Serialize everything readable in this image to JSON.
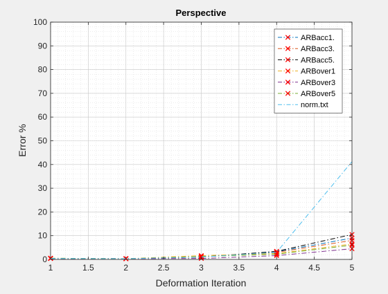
{
  "chart_data": {
    "type": "line",
    "title": "Perspective",
    "xlabel": "Deformation Iteration",
    "ylabel": "Error %",
    "xlim": [
      1,
      5
    ],
    "ylim": [
      0,
      100
    ],
    "xticks": [
      "1",
      "1.5",
      "2",
      "2.5",
      "3",
      "3.5",
      "4",
      "4.5",
      "5"
    ],
    "yticks": [
      "0",
      "10",
      "20",
      "30",
      "40",
      "50",
      "60",
      "70",
      "80",
      "90",
      "100"
    ],
    "grid": true,
    "minor_grid": true,
    "legend_position": "top-right",
    "x": [
      1,
      2,
      3,
      4,
      5
    ],
    "series": [
      {
        "name": "ARBacc1.",
        "color": "#0072BD",
        "marker": "x",
        "marker_color": "#FF0000",
        "values": [
          0.4,
          0.3,
          1.0,
          3.2,
          9.0
        ]
      },
      {
        "name": "ARBacc3.",
        "color": "#D95319",
        "marker": "x",
        "marker_color": "#FF0000",
        "values": [
          0.4,
          0.3,
          1.0,
          3.0,
          8.0
        ]
      },
      {
        "name": "ARBacc5.",
        "color": "#000000",
        "marker": "x",
        "marker_color": "#FF0000",
        "values": [
          0.4,
          0.3,
          1.0,
          3.4,
          10.5
        ]
      },
      {
        "name": "ARBover1",
        "color": "#EDB120",
        "marker": "x",
        "marker_color": "#FF0000",
        "values": [
          0.5,
          0.3,
          1.6,
          2.5,
          6.5
        ]
      },
      {
        "name": "ARBover3",
        "color": "#7E2F8E",
        "marker": "x",
        "marker_color": "#FF0000",
        "values": [
          0.4,
          0.3,
          0.4,
          1.6,
          4.5
        ]
      },
      {
        "name": "ARBover5",
        "color": "#77AC30",
        "marker": "x",
        "marker_color": "#FF0000",
        "values": [
          0.5,
          0.3,
          1.2,
          2.2,
          6.0
        ]
      },
      {
        "name": "norm.txt",
        "color": "#4DBEEE",
        "marker": "none",
        "marker_color": "",
        "values": [
          0.4,
          0.3,
          1.0,
          3.0,
          41.2
        ]
      }
    ]
  }
}
